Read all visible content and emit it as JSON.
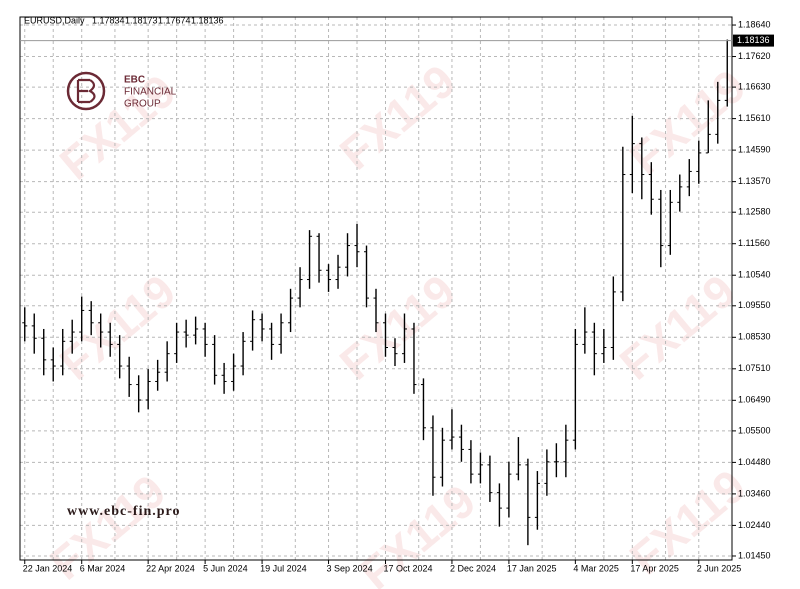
{
  "watermark": "FX119",
  "logo": [
    "EBC",
    "FINANCIAL",
    "GROUP"
  ],
  "website": "www.ebc-fin.pro",
  "chart_data": {
    "type": "ohlc",
    "title": "EURUSD,Daily",
    "quote": [
      1.17834,
      1.18173,
      1.17674,
      1.18136
    ],
    "last_price": 1.18136,
    "color": "#000000",
    "grid": true,
    "categories": [
      "22 Jan 2024",
      null,
      null,
      null,
      null,
      null,
      "6 Mar 2024",
      null,
      null,
      null,
      null,
      null,
      null,
      "22 Apr 2024",
      null,
      null,
      null,
      null,
      null,
      "5 Jun 2024",
      null,
      null,
      null,
      null,
      null,
      "19 Jul 2024",
      null,
      null,
      null,
      null,
      null,
      null,
      "3 Sep 2024",
      null,
      null,
      null,
      null,
      null,
      "17 Oct 2024",
      null,
      null,
      null,
      null,
      null,
      null,
      "2 Dec 2024",
      null,
      null,
      null,
      null,
      null,
      "17 Jan 2025",
      null,
      null,
      null,
      null,
      null,
      null,
      "4 Mar 2025",
      null,
      null,
      null,
      null,
      null,
      "17 Apr 2025",
      null,
      null,
      null,
      null,
      null,
      null,
      "2 Jun 2025",
      null,
      null,
      null
    ],
    "open": [
      1.09,
      1.089,
      1.085,
      1.078,
      1.076,
      1.084,
      1.087,
      1.094,
      1.09,
      1.087,
      1.083,
      1.076,
      1.07,
      1.065,
      1.071,
      1.074,
      1.08,
      1.087,
      1.086,
      1.088,
      1.083,
      1.073,
      1.071,
      1.076,
      1.084,
      1.091,
      1.088,
      1.083,
      1.09,
      1.098,
      1.104,
      1.118,
      1.107,
      1.104,
      1.108,
      1.115,
      1.113,
      1.098,
      1.09,
      1.082,
      1.08,
      1.088,
      1.07,
      1.056,
      1.04,
      1.052,
      1.053,
      1.049,
      1.041,
      1.044,
      1.035,
      1.03,
      1.041,
      1.044,
      1.027,
      1.038,
      1.045,
      1.045,
      1.052,
      1.083,
      1.087,
      1.08,
      1.082,
      1.1,
      1.138,
      1.148,
      1.138,
      1.13,
      1.115,
      1.129,
      1.134,
      1.139,
      1.145,
      1.151,
      1.162
    ],
    "high": [
      1.095,
      1.093,
      1.088,
      1.082,
      1.088,
      1.091,
      1.0985,
      1.097,
      1.093,
      1.09,
      1.086,
      1.079,
      1.073,
      1.075,
      1.078,
      1.084,
      1.09,
      1.091,
      1.092,
      1.09,
      1.086,
      1.077,
      1.08,
      1.087,
      1.094,
      1.093,
      1.09,
      1.093,
      1.101,
      1.108,
      1.12,
      1.119,
      1.109,
      1.112,
      1.119,
      1.122,
      1.115,
      1.101,
      1.093,
      1.085,
      1.093,
      1.09,
      1.072,
      1.06,
      1.056,
      1.062,
      1.057,
      1.052,
      1.048,
      1.047,
      1.038,
      1.045,
      1.053,
      1.046,
      1.042,
      1.049,
      1.051,
      1.057,
      1.088,
      1.095,
      1.09,
      1.088,
      1.105,
      1.147,
      1.157,
      1.15,
      1.142,
      1.133,
      1.133,
      1.138,
      1.143,
      1.149,
      1.162,
      1.168,
      1.1817
    ],
    "low": [
      1.084,
      1.08,
      1.073,
      1.071,
      1.073,
      1.08,
      1.084,
      1.086,
      1.082,
      1.079,
      1.072,
      1.066,
      1.061,
      1.062,
      1.068,
      1.071,
      1.077,
      1.082,
      1.083,
      1.079,
      1.07,
      1.067,
      1.068,
      1.073,
      1.081,
      1.084,
      1.078,
      1.08,
      1.087,
      1.095,
      1.101,
      1.103,
      1.1,
      1.101,
      1.105,
      1.108,
      1.095,
      1.087,
      1.079,
      1.076,
      1.077,
      1.067,
      1.052,
      1.034,
      1.037,
      1.049,
      1.045,
      1.038,
      1.038,
      1.032,
      1.024,
      1.027,
      1.039,
      1.018,
      1.023,
      1.034,
      1.04,
      1.04,
      1.049,
      1.08,
      1.073,
      1.077,
      1.078,
      1.097,
      1.132,
      1.13,
      1.125,
      1.108,
      1.112,
      1.126,
      1.131,
      1.135,
      1.145,
      1.148,
      1.16
    ],
    "close": [
      1.089,
      1.085,
      1.078,
      1.076,
      1.084,
      1.087,
      1.094,
      1.09,
      1.087,
      1.083,
      1.076,
      1.07,
      1.065,
      1.071,
      1.074,
      1.08,
      1.087,
      1.086,
      1.088,
      1.083,
      1.073,
      1.071,
      1.076,
      1.084,
      1.091,
      1.088,
      1.083,
      1.09,
      1.098,
      1.104,
      1.118,
      1.107,
      1.104,
      1.108,
      1.115,
      1.113,
      1.098,
      1.09,
      1.082,
      1.08,
      1.088,
      1.07,
      1.056,
      1.04,
      1.052,
      1.053,
      1.049,
      1.041,
      1.044,
      1.035,
      1.03,
      1.041,
      1.044,
      1.027,
      1.038,
      1.045,
      1.045,
      1.052,
      1.083,
      1.087,
      1.08,
      1.082,
      1.1,
      1.138,
      1.148,
      1.138,
      1.13,
      1.115,
      1.129,
      1.134,
      1.139,
      1.145,
      1.151,
      1.162,
      1.1814
    ],
    "ylim": [
      1.0132,
      1.189
    ],
    "yticks": [
      {
        "value": 1.1864,
        "label": "1.18640"
      },
      {
        "value": 1.1762,
        "label": "1.17620"
      },
      {
        "value": 1.1663,
        "label": "1.16630"
      },
      {
        "value": 1.1561,
        "label": "1.15610"
      },
      {
        "value": 1.1459,
        "label": "1.14590"
      },
      {
        "value": 1.1357,
        "label": "1.13570"
      },
      {
        "value": 1.1258,
        "label": "1.12580"
      },
      {
        "value": 1.1156,
        "label": "1.11560"
      },
      {
        "value": 1.1054,
        "label": "1.10540"
      },
      {
        "value": 1.0955,
        "label": "1.09550"
      },
      {
        "value": 1.0853,
        "label": "1.08530"
      },
      {
        "value": 1.0751,
        "label": "1.07510"
      },
      {
        "value": 1.0649,
        "label": "1.06490"
      },
      {
        "value": 1.055,
        "label": "1.05500"
      },
      {
        "value": 1.0448,
        "label": "1.04480"
      },
      {
        "value": 1.0346,
        "label": "1.03460"
      },
      {
        "value": 1.0244,
        "label": "1.02440"
      },
      {
        "value": 1.0145,
        "label": "1.01450"
      }
    ]
  }
}
